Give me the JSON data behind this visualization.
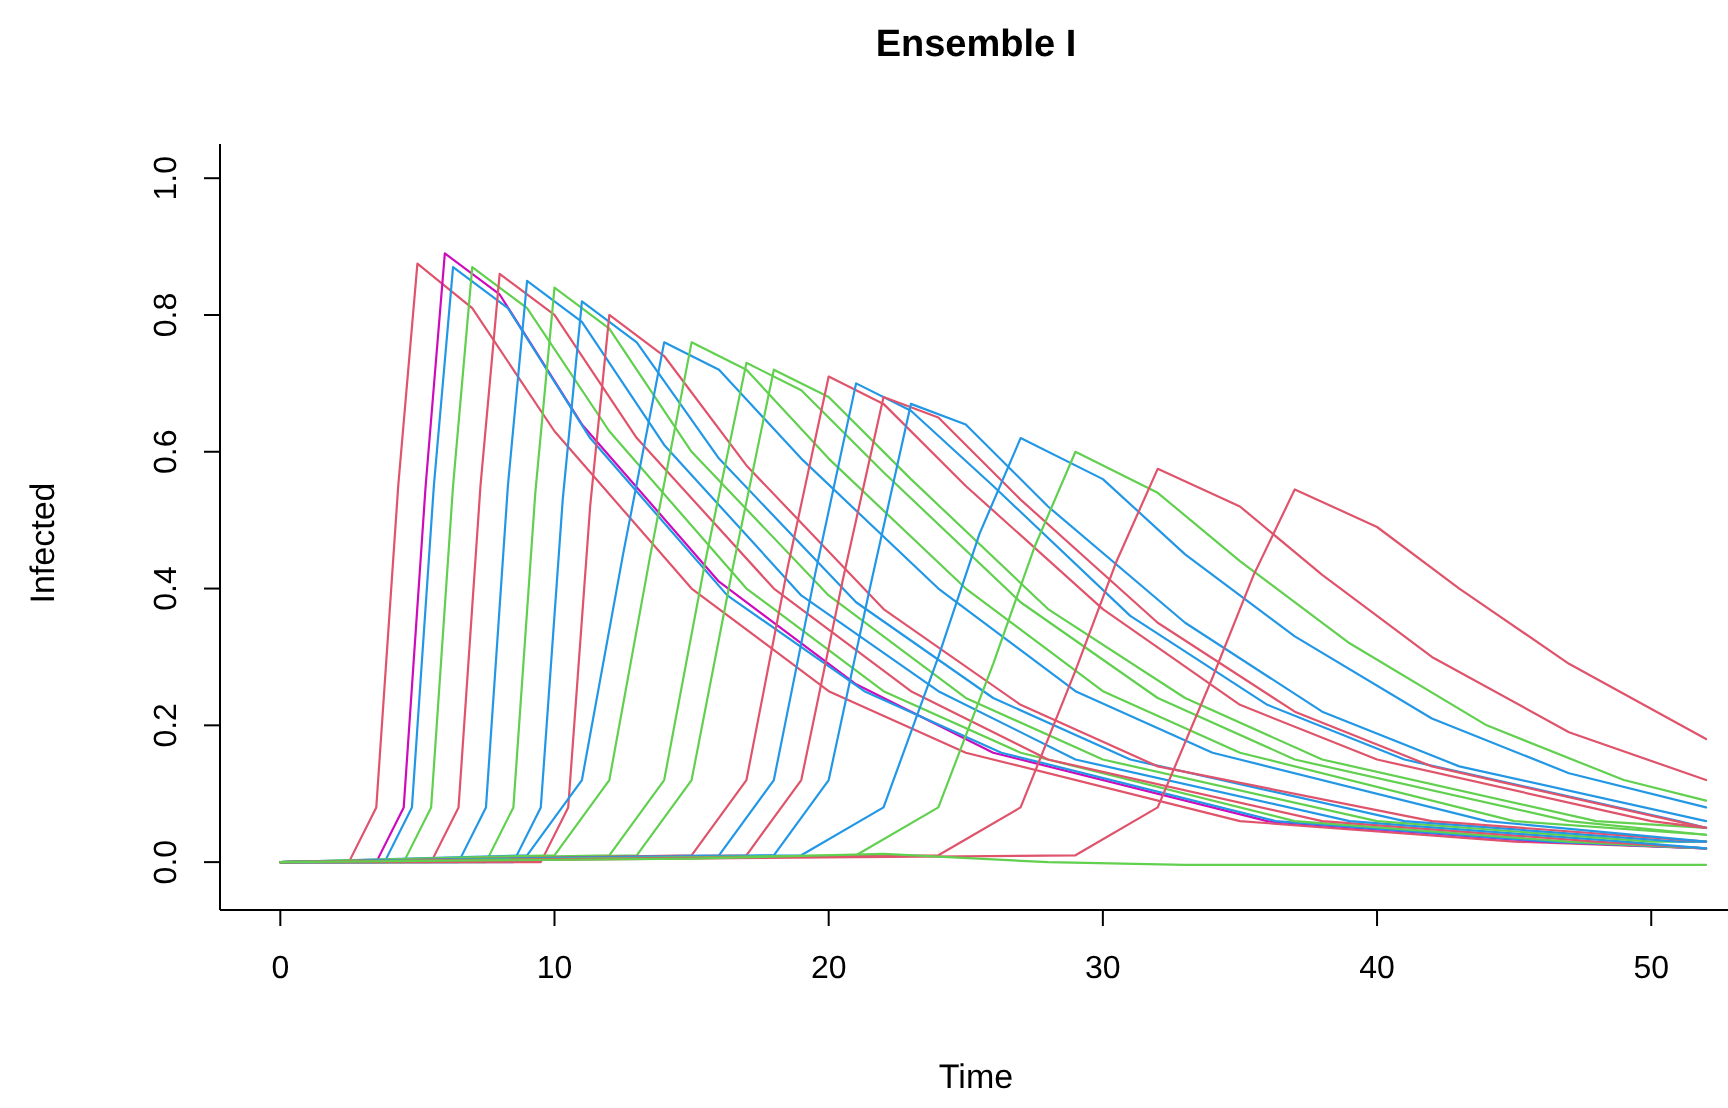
{
  "chart_data": {
    "type": "line",
    "title": "Ensemble I",
    "xlabel": "Time",
    "ylabel": "Infected",
    "xlim": [
      -2.2,
      52.8
    ],
    "ylim": [
      -0.07,
      1.05
    ],
    "xticks": [
      0,
      10,
      20,
      30,
      40,
      50
    ],
    "yticks": [
      {
        "value": 0,
        "label": "0.0"
      },
      0.2,
      0.4,
      0.6,
      0.8,
      {
        "value": 1,
        "label": "1.0"
      }
    ],
    "series": [
      {
        "color": "#DF536B",
        "x": [
          0,
          2.5,
          3.5,
          4.3,
          5,
          7,
          10,
          15,
          20,
          25,
          35,
          45,
          52
        ],
        "values": [
          0,
          0,
          0.08,
          0.55,
          0.875,
          0.81,
          0.63,
          0.4,
          0.25,
          0.16,
          0.06,
          0.03,
          0.02
        ]
      },
      {
        "color": "#CD0BBC",
        "x": [
          0,
          3.5,
          4.5,
          5.3,
          6,
          8,
          11,
          16,
          21,
          26,
          36,
          46,
          52
        ],
        "values": [
          0,
          0,
          0.08,
          0.55,
          0.89,
          0.83,
          0.64,
          0.41,
          0.26,
          0.16,
          0.06,
          0.03,
          0.02
        ]
      },
      {
        "color": "#2297E6",
        "x": [
          0,
          3.8,
          4.8,
          5.6,
          6.3,
          8.3,
          11.3,
          16.3,
          21.3,
          26.3,
          36.3,
          46.3,
          52
        ],
        "values": [
          0,
          0,
          0.08,
          0.55,
          0.87,
          0.81,
          0.62,
          0.39,
          0.25,
          0.16,
          0.06,
          0.03,
          0.02
        ]
      },
      {
        "color": "#61D04F",
        "x": [
          0,
          4.5,
          5.5,
          6.3,
          7,
          9,
          12,
          17,
          22,
          27,
          37,
          47,
          52
        ],
        "values": [
          0,
          0,
          0.08,
          0.55,
          0.87,
          0.81,
          0.63,
          0.4,
          0.25,
          0.16,
          0.06,
          0.03,
          0.02
        ]
      },
      {
        "color": "#DF536B",
        "x": [
          0,
          5.5,
          6.5,
          7.3,
          8,
          10,
          13,
          18,
          23,
          28,
          38,
          48,
          52
        ],
        "values": [
          0,
          0,
          0.08,
          0.55,
          0.86,
          0.8,
          0.62,
          0.4,
          0.25,
          0.15,
          0.06,
          0.03,
          0.02
        ]
      },
      {
        "color": "#2297E6",
        "x": [
          0,
          6.5,
          7.5,
          8.3,
          9,
          11,
          14,
          19,
          24,
          29,
          39,
          49,
          52
        ],
        "values": [
          0,
          0,
          0.08,
          0.55,
          0.85,
          0.79,
          0.61,
          0.39,
          0.25,
          0.15,
          0.06,
          0.03,
          0.02
        ]
      },
      {
        "color": "#61D04F",
        "x": [
          0,
          7.5,
          8.5,
          9.3,
          10,
          12,
          15,
          20,
          25,
          30,
          40,
          50,
          52
        ],
        "values": [
          0,
          0,
          0.08,
          0.54,
          0.84,
          0.78,
          0.6,
          0.39,
          0.24,
          0.15,
          0.06,
          0.03,
          0.03
        ]
      },
      {
        "color": "#2297E6",
        "x": [
          0,
          8.5,
          9.5,
          10.3,
          11,
          13,
          16,
          21,
          26,
          31,
          41,
          51,
          52
        ],
        "values": [
          0,
          0,
          0.08,
          0.53,
          0.82,
          0.76,
          0.59,
          0.38,
          0.24,
          0.15,
          0.06,
          0.03,
          0.03
        ]
      },
      {
        "color": "#DF536B",
        "x": [
          0,
          9.5,
          10.5,
          11.3,
          12,
          14,
          17,
          22,
          27,
          32,
          42,
          52
        ],
        "values": [
          0,
          0,
          0.08,
          0.52,
          0.8,
          0.74,
          0.58,
          0.37,
          0.23,
          0.14,
          0.06,
          0.03
        ]
      },
      {
        "color": "#2297E6",
        "x": [
          0,
          9,
          11,
          12.5,
          14,
          16,
          19,
          24,
          29,
          34,
          44,
          52
        ],
        "values": [
          0,
          0.01,
          0.12,
          0.45,
          0.76,
          0.72,
          0.59,
          0.4,
          0.25,
          0.16,
          0.06,
          0.03
        ]
      },
      {
        "color": "#61D04F",
        "x": [
          0,
          10,
          12,
          13.5,
          15,
          17,
          20,
          25,
          30,
          35,
          45,
          52
        ],
        "values": [
          0,
          0.01,
          0.12,
          0.45,
          0.76,
          0.72,
          0.59,
          0.4,
          0.25,
          0.16,
          0.06,
          0.04
        ]
      },
      {
        "color": "#61D04F",
        "x": [
          0,
          12,
          14,
          15.5,
          17,
          19,
          22,
          27,
          32,
          37,
          47,
          52
        ],
        "values": [
          0,
          0.01,
          0.12,
          0.44,
          0.73,
          0.69,
          0.57,
          0.38,
          0.24,
          0.15,
          0.06,
          0.04
        ]
      },
      {
        "color": "#61D04F",
        "x": [
          0,
          13,
          15,
          16.5,
          18,
          20,
          23,
          28,
          33,
          38,
          48,
          52
        ],
        "values": [
          0,
          0.01,
          0.12,
          0.43,
          0.72,
          0.68,
          0.56,
          0.37,
          0.24,
          0.15,
          0.06,
          0.05
        ]
      },
      {
        "color": "#DF536B",
        "x": [
          0,
          15,
          17,
          18.5,
          20,
          22,
          25,
          30,
          35,
          40,
          50,
          52
        ],
        "values": [
          0,
          0.01,
          0.12,
          0.43,
          0.71,
          0.67,
          0.55,
          0.37,
          0.23,
          0.15,
          0.06,
          0.05
        ]
      },
      {
        "color": "#2297E6",
        "x": [
          0,
          16,
          18,
          19.5,
          21,
          23,
          26,
          31,
          36,
          41,
          51,
          52
        ],
        "values": [
          0,
          0.01,
          0.12,
          0.42,
          0.7,
          0.66,
          0.55,
          0.36,
          0.23,
          0.15,
          0.06,
          0.05
        ]
      },
      {
        "color": "#DF536B",
        "x": [
          0,
          17,
          19,
          20.5,
          22,
          24,
          27,
          32,
          37,
          42,
          52
        ],
        "values": [
          0,
          0.01,
          0.12,
          0.41,
          0.68,
          0.65,
          0.53,
          0.35,
          0.22,
          0.14,
          0.05
        ]
      },
      {
        "color": "#2297E6",
        "x": [
          0,
          18,
          20,
          21.5,
          23,
          25,
          28,
          33,
          38,
          43,
          52
        ],
        "values": [
          0,
          0.01,
          0.12,
          0.4,
          0.67,
          0.64,
          0.52,
          0.35,
          0.22,
          0.14,
          0.06
        ]
      },
      {
        "color": "#2297E6",
        "x": [
          0,
          19,
          22,
          24,
          25.5,
          27,
          30,
          33,
          37,
          42,
          47,
          52
        ],
        "values": [
          0,
          0.01,
          0.08,
          0.3,
          0.48,
          0.62,
          0.56,
          0.45,
          0.33,
          0.21,
          0.13,
          0.08
        ]
      },
      {
        "color": "#61D04F",
        "x": [
          0,
          21,
          24,
          26,
          27.5,
          29,
          32,
          35,
          39,
          44,
          49,
          52
        ],
        "values": [
          0,
          0.01,
          0.08,
          0.29,
          0.46,
          0.6,
          0.54,
          0.44,
          0.32,
          0.2,
          0.12,
          0.09
        ]
      },
      {
        "color": "#DF536B",
        "x": [
          0,
          24,
          27,
          29,
          30.5,
          32,
          35,
          38,
          42,
          47,
          52
        ],
        "values": [
          0,
          0.01,
          0.08,
          0.28,
          0.44,
          0.575,
          0.52,
          0.42,
          0.3,
          0.19,
          0.12
        ]
      },
      {
        "color": "#DF536B",
        "x": [
          0,
          29,
          32,
          34,
          35.5,
          37,
          40,
          43,
          47,
          52
        ],
        "values": [
          0,
          0.01,
          0.08,
          0.27,
          0.42,
          0.545,
          0.49,
          0.4,
          0.29,
          0.18
        ]
      },
      {
        "color": "#61D04F",
        "x": [
          0,
          15,
          22,
          28,
          33,
          52
        ],
        "values": [
          0,
          0.005,
          0.012,
          0,
          -0.004,
          -0.004
        ]
      }
    ]
  }
}
